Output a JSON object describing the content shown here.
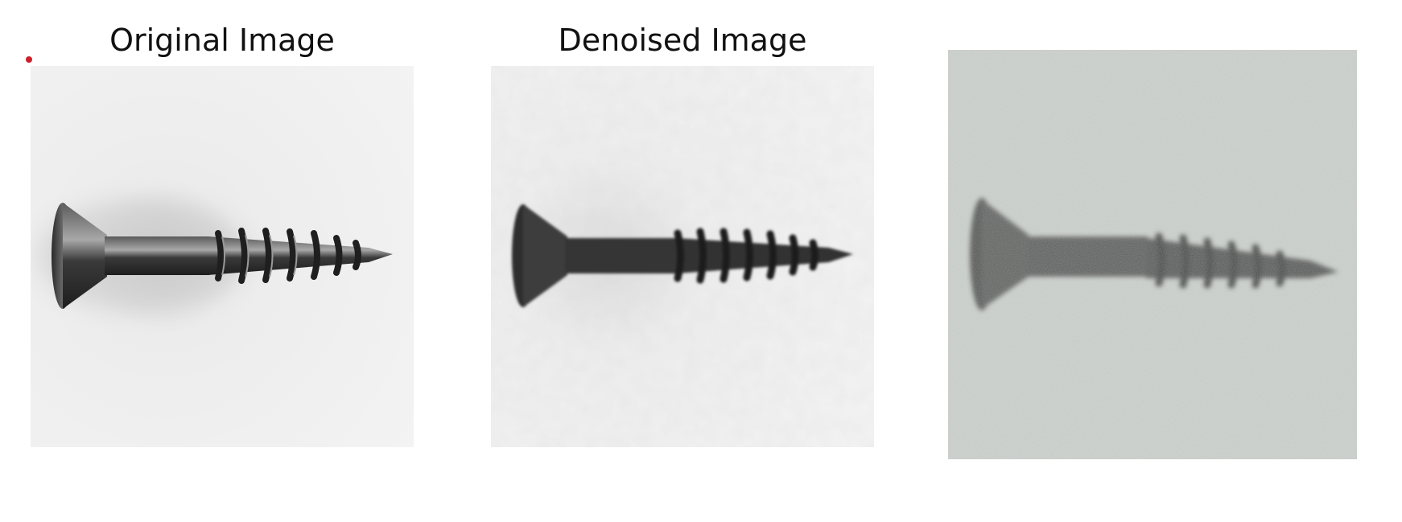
{
  "panels": [
    {
      "title": "Original Image",
      "subject": "screw-photo",
      "style": "original"
    },
    {
      "title": "Denoised Image",
      "subject": "screw-photo",
      "style": "denoised"
    },
    {
      "title": "",
      "subject": "screw-photo",
      "style": "noisy"
    }
  ],
  "colors": {
    "marker": "#cc1f2a",
    "background_original": "#efefef",
    "background_denoised": "#f2f2f2",
    "background_noisy": "#cfd3d0",
    "screw_dark": "#2a2a2a"
  }
}
